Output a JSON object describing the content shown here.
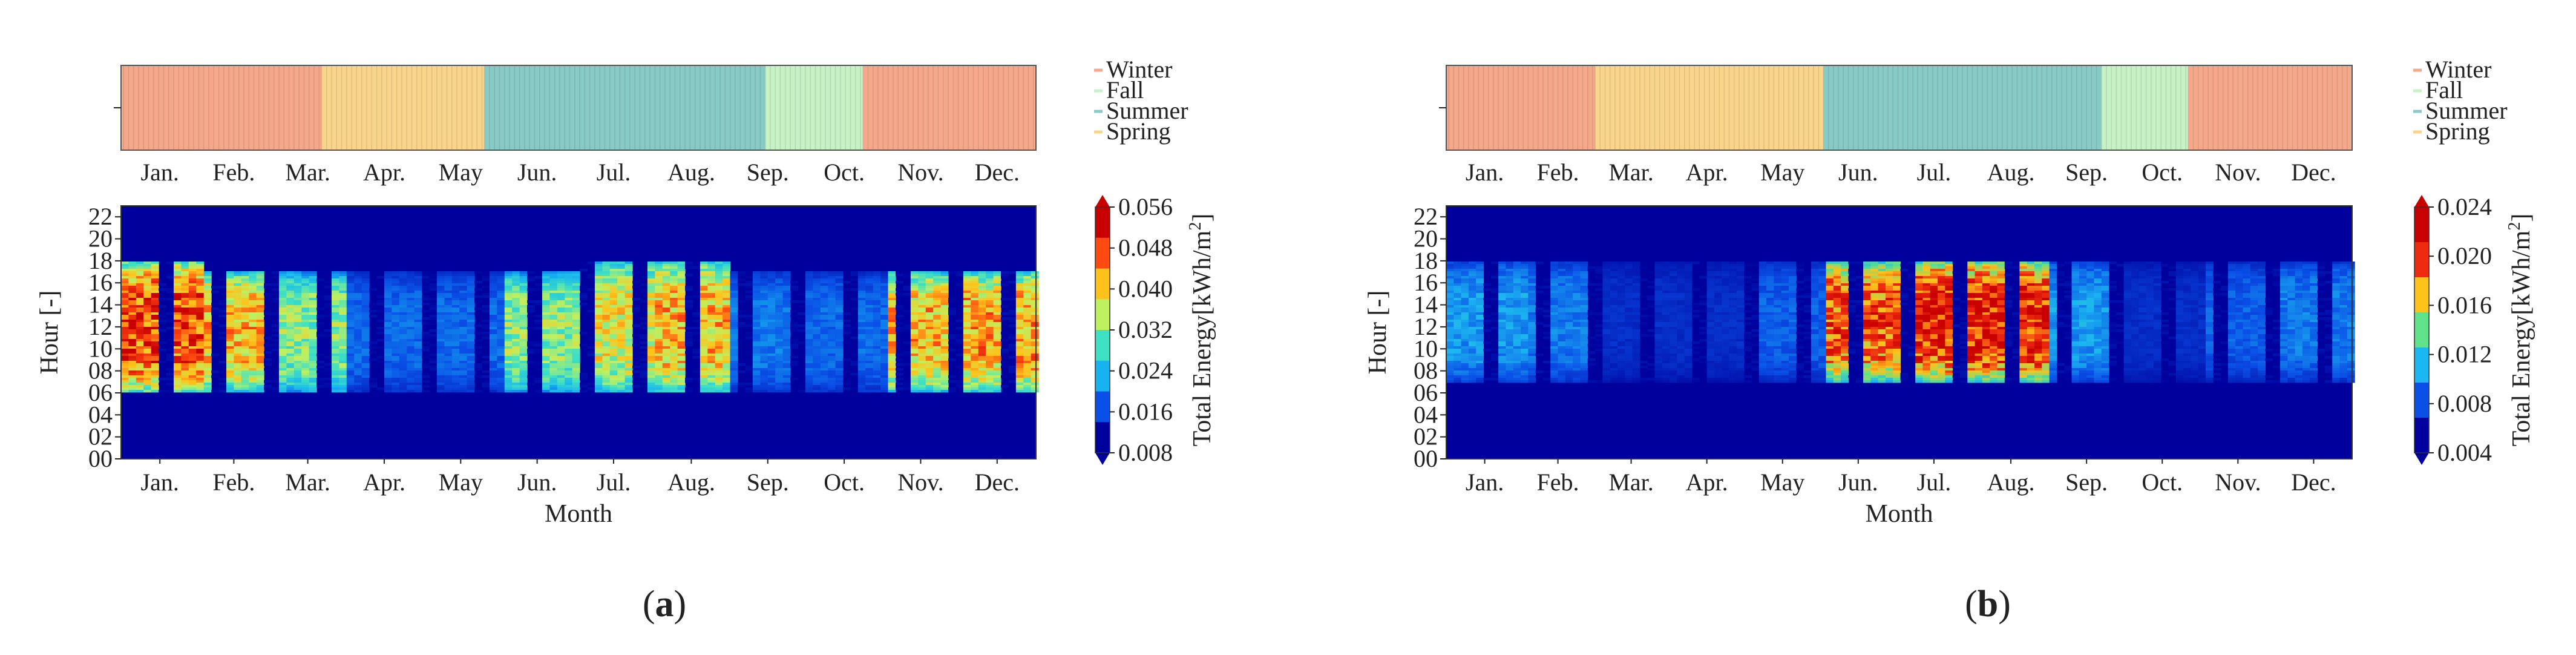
{
  "figure": {
    "panels": [
      {
        "caption": "(a)",
        "caption_letter": "a",
        "colorbar": {
          "label": "Total Energy[kWh/m",
          "label_sup": "2",
          "label_end": "]",
          "ticks": [
            "0.008",
            "0.016",
            "0.024",
            "0.032",
            "0.040",
            "0.048",
            "0.056"
          ],
          "min": 0.008,
          "max": 0.056,
          "colors": [
            "#00009c",
            "#0a4fe6",
            "#17b3f0",
            "#3fe0c4",
            "#bff060",
            "#ffc21a",
            "#ff4a12",
            "#c80000"
          ]
        }
      },
      {
        "caption": "(b)",
        "caption_letter": "b",
        "colorbar": {
          "label": "Total Energy[kWh/m",
          "label_sup": "2",
          "label_end": "]",
          "ticks": [
            "0.004",
            "0.008",
            "0.012",
            "0.016",
            "0.020",
            "0.024"
          ],
          "min": 0.004,
          "max": 0.024,
          "colors": [
            "#00009c",
            "#0a4fe6",
            "#1cb6f0",
            "#5fe28a",
            "#ffc21a",
            "#ee2a10",
            "#c80000"
          ]
        }
      }
    ]
  },
  "chart_data": [
    {
      "type": "heatmap",
      "panel": "a",
      "title": "",
      "xlabel": "Month",
      "ylabel": "Hour [-]",
      "x_ticks": [
        "Jan.",
        "Feb.",
        "Mar.",
        "Apr.",
        "May",
        "Jun.",
        "Jul.",
        "Aug.",
        "Sep.",
        "Oct.",
        "Nov.",
        "Dec."
      ],
      "y_ticks": [
        "00",
        "02",
        "04",
        "06",
        "08",
        "10",
        "12",
        "14",
        "16",
        "18",
        "20",
        "22"
      ],
      "ylim": [
        0,
        23
      ],
      "value_range": [
        0.008,
        0.056
      ],
      "season_bar": [
        {
          "season": "Winter",
          "start_day": 1,
          "end_day": 80
        },
        {
          "season": "Spring",
          "start_day": 80,
          "end_day": 145
        },
        {
          "season": "Summer",
          "start_day": 145,
          "end_day": 257
        },
        {
          "season": "Fall",
          "start_day": 257,
          "end_day": 296
        },
        {
          "season": "Winter",
          "start_day": 296,
          "end_day": 365
        }
      ],
      "legend": [
        {
          "label": "Winter",
          "color": "#f6a98a"
        },
        {
          "label": "Fall",
          "color": "#c6f2c6"
        },
        {
          "label": "Summer",
          "color": "#88cbc6"
        },
        {
          "label": "Spring",
          "color": "#f9d58c"
        }
      ],
      "profile_by_month": [
        {
          "month": "Jan.",
          "start_hour": 6,
          "end_hour": 18,
          "peak": 0.052
        },
        {
          "month": "Feb.",
          "start_hour": 6,
          "end_hour": 17,
          "peak": 0.044
        },
        {
          "month": "Mar.",
          "start_hour": 6,
          "end_hour": 17,
          "peak": 0.034
        },
        {
          "month": "Apr.",
          "start_hour": 6,
          "end_hour": 17,
          "peak": 0.017
        },
        {
          "month": "May",
          "start_hour": 6,
          "end_hour": 17,
          "peak": 0.017
        },
        {
          "month": "Jun.",
          "start_hour": 6,
          "end_hour": 17,
          "peak": 0.034
        },
        {
          "month": "Jul.",
          "start_hour": 6,
          "end_hour": 18,
          "peak": 0.04
        },
        {
          "month": "Aug.",
          "start_hour": 6,
          "end_hour": 18,
          "peak": 0.044
        },
        {
          "month": "Sep.",
          "start_hour": 6,
          "end_hour": 17,
          "peak": 0.018
        },
        {
          "month": "Oct.",
          "start_hour": 6,
          "end_hour": 17,
          "peak": 0.017
        },
        {
          "month": "Nov.",
          "start_hour": 6,
          "end_hour": 17,
          "peak": 0.044
        },
        {
          "month": "Dec.",
          "start_hour": 6,
          "end_hour": 17,
          "peak": 0.046
        }
      ]
    },
    {
      "type": "heatmap",
      "panel": "b",
      "title": "",
      "xlabel": "Month",
      "ylabel": "Hour [-]",
      "x_ticks": [
        "Jan.",
        "Feb.",
        "Mar.",
        "Apr.",
        "May",
        "Jun.",
        "Jul.",
        "Aug.",
        "Sep.",
        "Oct.",
        "Nov.",
        "Dec."
      ],
      "y_ticks": [
        "00",
        "02",
        "04",
        "06",
        "08",
        "10",
        "12",
        "14",
        "16",
        "18",
        "20",
        "22"
      ],
      "ylim": [
        0,
        23
      ],
      "value_range": [
        0.004,
        0.024
      ],
      "season_bar": [
        {
          "season": "Winter",
          "start_day": 1,
          "end_day": 60
        },
        {
          "season": "Spring",
          "start_day": 60,
          "end_day": 152
        },
        {
          "season": "Summer",
          "start_day": 152,
          "end_day": 264
        },
        {
          "season": "Fall",
          "start_day": 264,
          "end_day": 299
        },
        {
          "season": "Winter",
          "start_day": 299,
          "end_day": 365
        }
      ],
      "legend": [
        {
          "label": "Winter",
          "color": "#f6a98a"
        },
        {
          "label": "Fall",
          "color": "#c6f2c6"
        },
        {
          "label": "Summer",
          "color": "#88cbc6"
        },
        {
          "label": "Spring",
          "color": "#f9d58c"
        }
      ],
      "profile_by_month": [
        {
          "month": "Jan.",
          "start_hour": 7,
          "end_hour": 18,
          "peak": 0.01
        },
        {
          "month": "Feb.",
          "start_hour": 7,
          "end_hour": 18,
          "peak": 0.009
        },
        {
          "month": "Mar.",
          "start_hour": 7,
          "end_hour": 18,
          "peak": 0.006
        },
        {
          "month": "Apr.",
          "start_hour": 7,
          "end_hour": 18,
          "peak": 0.006
        },
        {
          "month": "May",
          "start_hour": 7,
          "end_hour": 18,
          "peak": 0.008
        },
        {
          "month": "Jun.",
          "start_hour": 7,
          "end_hour": 18,
          "peak": 0.021
        },
        {
          "month": "Jul.",
          "start_hour": 7,
          "end_hour": 18,
          "peak": 0.023
        },
        {
          "month": "Aug.",
          "start_hour": 7,
          "end_hour": 18,
          "peak": 0.023
        },
        {
          "month": "Sep.",
          "start_hour": 7,
          "end_hour": 18,
          "peak": 0.01
        },
        {
          "month": "Oct.",
          "start_hour": 7,
          "end_hour": 18,
          "peak": 0.006
        },
        {
          "month": "Nov.",
          "start_hour": 7,
          "end_hour": 18,
          "peak": 0.008
        },
        {
          "month": "Dec.",
          "start_hour": 7,
          "end_hour": 18,
          "peak": 0.009
        }
      ]
    }
  ]
}
